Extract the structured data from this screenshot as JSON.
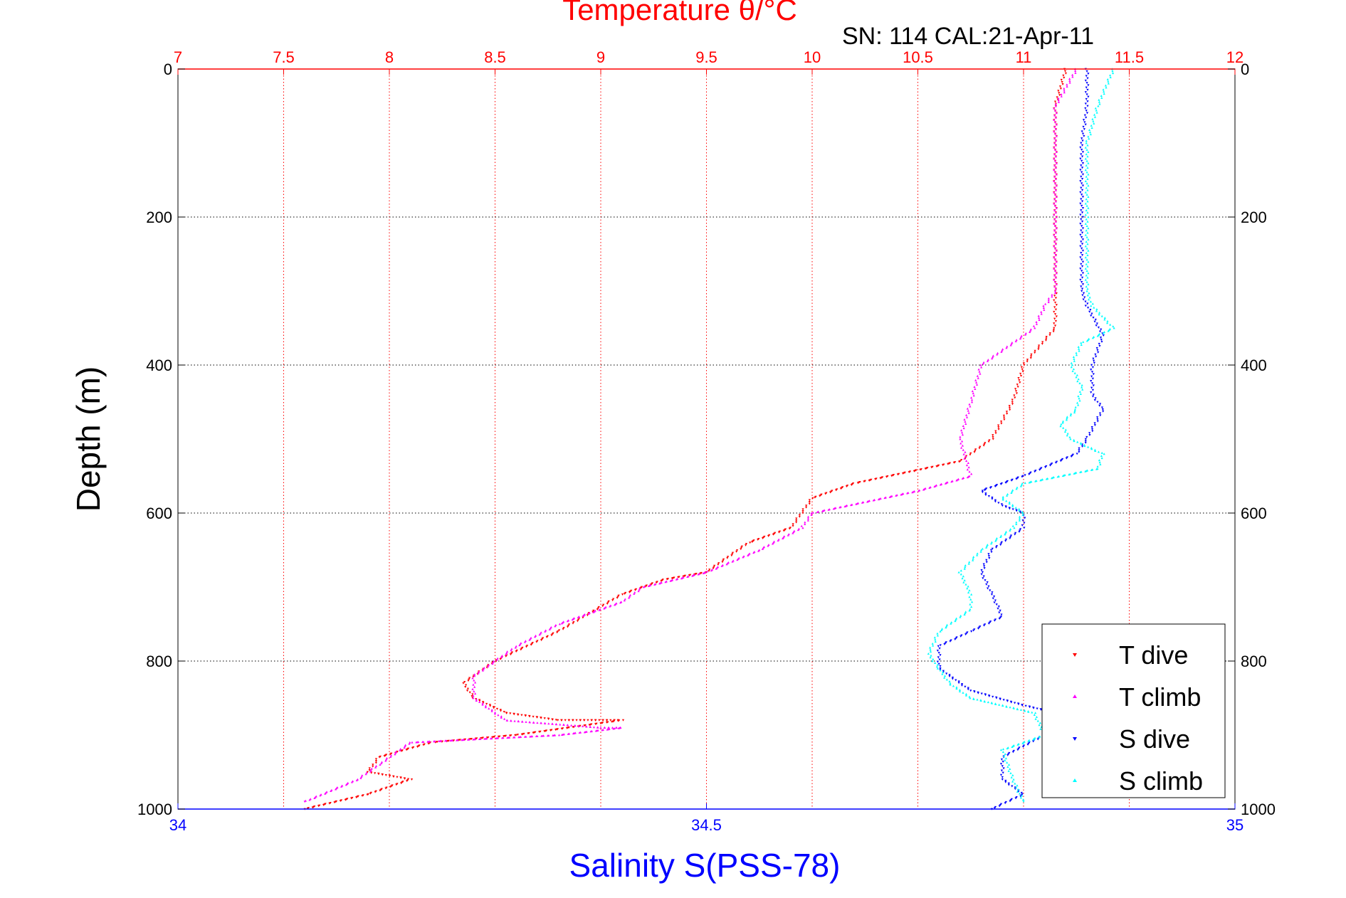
{
  "chart_data": {
    "type": "scatter",
    "title": "Temperature θ/°C",
    "subtitle": "SN: 114  CAL:21-Apr-11",
    "xlabel_top": "Temperature θ/°C",
    "xlabel_bottom": "Salinity S(PSS-78)",
    "ylabel": "Depth (m)",
    "temperature_axis": {
      "range": [
        7,
        12
      ],
      "ticks": [
        "7",
        "7.5",
        "8",
        "8.5",
        "9",
        "9.5",
        "10",
        "10.5",
        "11",
        "11.5",
        "12"
      ]
    },
    "salinity_axis": {
      "range": [
        34,
        35
      ],
      "ticks": [
        "34",
        "34.5",
        "35"
      ]
    },
    "depth_axis": {
      "range": [
        0,
        1000
      ],
      "reversed": true,
      "ticks": [
        "0",
        "200",
        "400",
        "600",
        "800",
        "1000"
      ]
    },
    "grid": true,
    "legend_position": "bottom-right",
    "colors": {
      "temperature_axis": "#ff0000",
      "salinity_axis": "#0000ff",
      "t_dive": "#ff0000",
      "t_climb": "#ff00ff",
      "s_dive": "#0000ff",
      "s_climb": "#00ffff"
    },
    "series": [
      {
        "name": "T dive",
        "axis": "temperature",
        "color": "#ff0000",
        "points": [
          [
            11.2,
            0
          ],
          [
            11.15,
            50
          ],
          [
            11.15,
            100
          ],
          [
            11.15,
            200
          ],
          [
            11.15,
            300
          ],
          [
            11.15,
            350
          ],
          [
            11.0,
            400
          ],
          [
            10.95,
            450
          ],
          [
            10.85,
            500
          ],
          [
            10.7,
            530
          ],
          [
            10.2,
            560
          ],
          [
            10.0,
            580
          ],
          [
            9.9,
            620
          ],
          [
            9.7,
            640
          ],
          [
            9.5,
            680
          ],
          [
            9.3,
            690
          ],
          [
            9.1,
            710
          ],
          [
            8.8,
            760
          ],
          [
            8.5,
            800
          ],
          [
            8.35,
            830
          ],
          [
            8.4,
            850
          ],
          [
            8.55,
            870
          ],
          [
            8.8,
            880
          ],
          [
            9.1,
            880
          ],
          [
            8.6,
            900
          ],
          [
            8.2,
            910
          ],
          [
            7.95,
            930
          ],
          [
            7.9,
            950
          ],
          [
            8.1,
            960
          ],
          [
            7.9,
            980
          ],
          [
            7.6,
            1000
          ]
        ]
      },
      {
        "name": "T climb",
        "axis": "temperature",
        "color": "#ff00ff",
        "points": [
          [
            11.25,
            0
          ],
          [
            11.15,
            50
          ],
          [
            11.15,
            100
          ],
          [
            11.15,
            200
          ],
          [
            11.15,
            300
          ],
          [
            11.1,
            320
          ],
          [
            11.05,
            350
          ],
          [
            10.8,
            400
          ],
          [
            10.75,
            450
          ],
          [
            10.7,
            500
          ],
          [
            10.75,
            550
          ],
          [
            10.5,
            570
          ],
          [
            10.0,
            600
          ],
          [
            9.95,
            620
          ],
          [
            9.75,
            650
          ],
          [
            9.5,
            680
          ],
          [
            9.2,
            700
          ],
          [
            9.1,
            720
          ],
          [
            8.8,
            750
          ],
          [
            8.6,
            780
          ],
          [
            8.5,
            800
          ],
          [
            8.4,
            820
          ],
          [
            8.4,
            850
          ],
          [
            8.55,
            880
          ],
          [
            9.0,
            890
          ],
          [
            9.1,
            890
          ],
          [
            8.8,
            900
          ],
          [
            8.1,
            910
          ],
          [
            7.95,
            940
          ],
          [
            7.85,
            960
          ],
          [
            7.6,
            990
          ]
        ]
      },
      {
        "name": "S dive",
        "axis": "salinity",
        "color": "#0000ff",
        "points": [
          [
            34.86,
            0
          ],
          [
            34.86,
            50
          ],
          [
            34.855,
            100
          ],
          [
            34.855,
            200
          ],
          [
            34.855,
            300
          ],
          [
            34.86,
            320
          ],
          [
            34.875,
            360
          ],
          [
            34.865,
            400
          ],
          [
            34.865,
            440
          ],
          [
            34.875,
            460
          ],
          [
            34.86,
            500
          ],
          [
            34.85,
            520
          ],
          [
            34.8,
            550
          ],
          [
            34.76,
            570
          ],
          [
            34.78,
            590
          ],
          [
            34.8,
            600
          ],
          [
            34.8,
            620
          ],
          [
            34.77,
            650
          ],
          [
            34.76,
            680
          ],
          [
            34.77,
            710
          ],
          [
            34.78,
            740
          ],
          [
            34.75,
            760
          ],
          [
            34.72,
            780
          ],
          [
            34.72,
            810
          ],
          [
            34.75,
            840
          ],
          [
            34.8,
            860
          ],
          [
            34.83,
            870
          ],
          [
            34.82,
            900
          ],
          [
            34.78,
            930
          ],
          [
            34.78,
            960
          ],
          [
            34.8,
            980
          ],
          [
            34.77,
            1000
          ]
        ]
      },
      {
        "name": "S climb",
        "axis": "salinity",
        "color": "#00ffff",
        "points": [
          [
            34.885,
            0
          ],
          [
            34.87,
            50
          ],
          [
            34.86,
            100
          ],
          [
            34.86,
            200
          ],
          [
            34.86,
            300
          ],
          [
            34.865,
            320
          ],
          [
            34.885,
            350
          ],
          [
            34.855,
            370
          ],
          [
            34.845,
            400
          ],
          [
            34.855,
            430
          ],
          [
            34.85,
            460
          ],
          [
            34.835,
            480
          ],
          [
            34.845,
            500
          ],
          [
            34.875,
            520
          ],
          [
            34.87,
            540
          ],
          [
            34.8,
            560
          ],
          [
            34.78,
            580
          ],
          [
            34.8,
            600
          ],
          [
            34.79,
            620
          ],
          [
            34.76,
            650
          ],
          [
            34.74,
            680
          ],
          [
            34.75,
            710
          ],
          [
            34.75,
            730
          ],
          [
            34.72,
            760
          ],
          [
            34.71,
            790
          ],
          [
            34.72,
            810
          ],
          [
            34.73,
            830
          ],
          [
            34.75,
            850
          ],
          [
            34.81,
            870
          ],
          [
            34.82,
            900
          ],
          [
            34.78,
            920
          ],
          [
            34.79,
            960
          ],
          [
            34.8,
            990
          ]
        ]
      }
    ]
  }
}
